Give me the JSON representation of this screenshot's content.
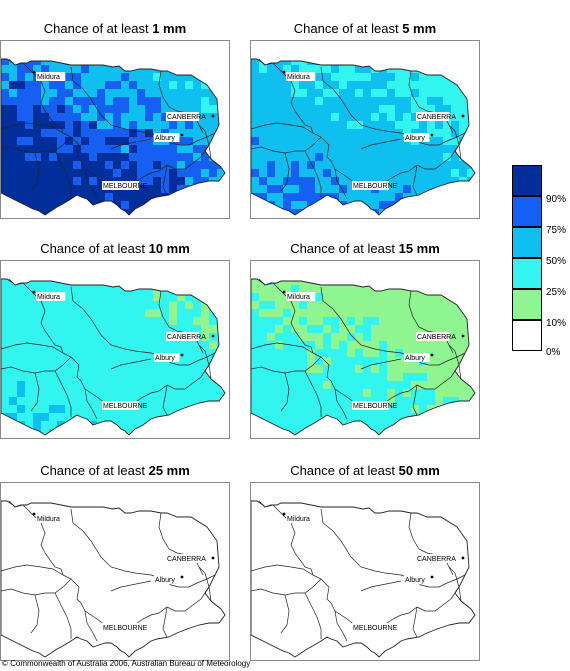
{
  "title_prefix": "Chance of at least",
  "panels": [
    {
      "amount": "1 mm",
      "intensity": 1.0
    },
    {
      "amount": "5 mm",
      "intensity": 0.72
    },
    {
      "amount": "10 mm",
      "intensity": 0.45
    },
    {
      "amount": "15 mm",
      "intensity": 0.3
    },
    {
      "amount": "25 mm",
      "intensity": 0.05
    },
    {
      "amount": "50 mm",
      "intensity": 0.0
    }
  ],
  "place_labels": {
    "mildura": "Mildura",
    "canberra": "CANBERRA",
    "albury": "Albury",
    "melbourne": "MELBOURNE"
  },
  "legend": {
    "labels": [
      "90%",
      "75%",
      "50%",
      "25%",
      "10%",
      "0%"
    ],
    "colors": [
      "#002f9c",
      "#1560f0",
      "#0fbfef",
      "#33f5f0",
      "#8ff590",
      "#ffffff"
    ]
  },
  "footer": "© Commonwealth of Australia 2006, Australian Bureau of Meteorology"
}
